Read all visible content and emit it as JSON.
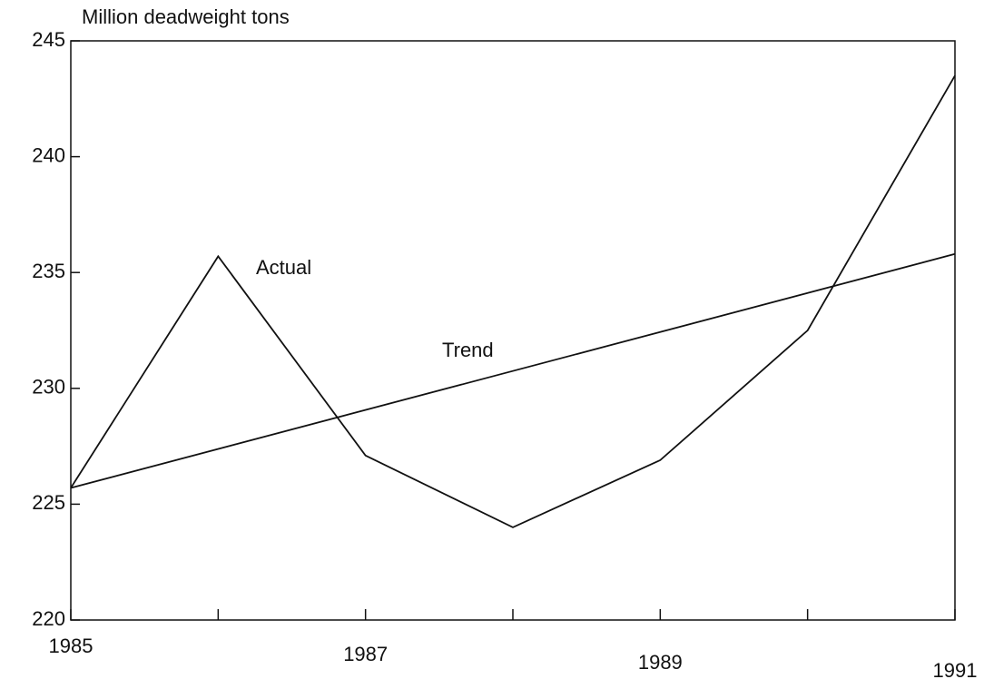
{
  "chart_data": {
    "type": "line",
    "y_label": "Million deadweight tons",
    "x": [
      1985,
      1986,
      1987,
      1988,
      1989,
      1990,
      1991
    ],
    "series": [
      {
        "name": "Actual",
        "color": "#111111",
        "values": [
          225.7,
          235.7,
          227.1,
          224.0,
          226.9,
          232.5,
          243.5
        ]
      },
      {
        "name": "Trend",
        "color": "#111111",
        "values": [
          225.7,
          null,
          null,
          null,
          null,
          null,
          235.8
        ]
      }
    ],
    "xlim": [
      1985,
      1991
    ],
    "xticks": [
      1985,
      1987,
      1989,
      1991
    ],
    "xminor_ticks": [
      1986,
      1988,
      1990
    ],
    "ylim": [
      220,
      245
    ],
    "yticks": [
      220,
      225,
      230,
      235,
      240,
      245
    ],
    "grid": false
  }
}
